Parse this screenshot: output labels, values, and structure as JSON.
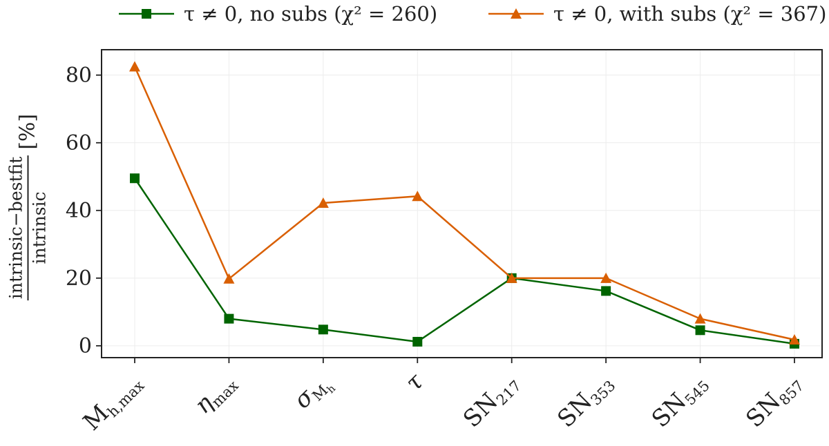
{
  "chart_data": {
    "type": "line",
    "title": "",
    "categories": [
      "M_h,max",
      "η_max",
      "σ_Mh",
      "τ",
      "SN_217",
      "SN_353",
      "SN_545",
      "SN_857"
    ],
    "category_labels": [
      {
        "main": "M",
        "sub": "h,max",
        "italic": false
      },
      {
        "main": "η",
        "sub": "max",
        "italic": true
      },
      {
        "main": "σ",
        "sub": "M",
        "subsub": "h",
        "italic": true
      },
      {
        "main": "τ",
        "sub": "",
        "italic": true
      },
      {
        "main": "SN",
        "sub": "217",
        "italic": false
      },
      {
        "main": "SN",
        "sub": "353",
        "italic": false
      },
      {
        "main": "SN",
        "sub": "545",
        "italic": false
      },
      {
        "main": "SN",
        "sub": "857",
        "italic": false
      }
    ],
    "series": [
      {
        "name": "τ ≠ 0, no subs (χ² = 260)",
        "color": "#006400",
        "marker": "square",
        "values": [
          49.5,
          8.0,
          4.8,
          1.2,
          20.0,
          16.2,
          4.6,
          0.6
        ]
      },
      {
        "name": "τ ≠ 0, with subs (χ² = 367)",
        "color": "#d95f02",
        "marker": "triangle",
        "values": [
          82.5,
          19.8,
          42.2,
          44.2,
          20.0,
          20.0,
          8.0,
          1.8
        ]
      }
    ],
    "ylim": [
      -3.5,
      87.5
    ],
    "yticks": [
      0,
      20,
      40,
      60,
      80
    ],
    "ylabel": {
      "numerator": "intrinsic−bestfit",
      "denominator": "intrinsic",
      "unit": "[%]"
    },
    "xlabel": "",
    "grid": true,
    "legend_position": "top, outside plot"
  }
}
